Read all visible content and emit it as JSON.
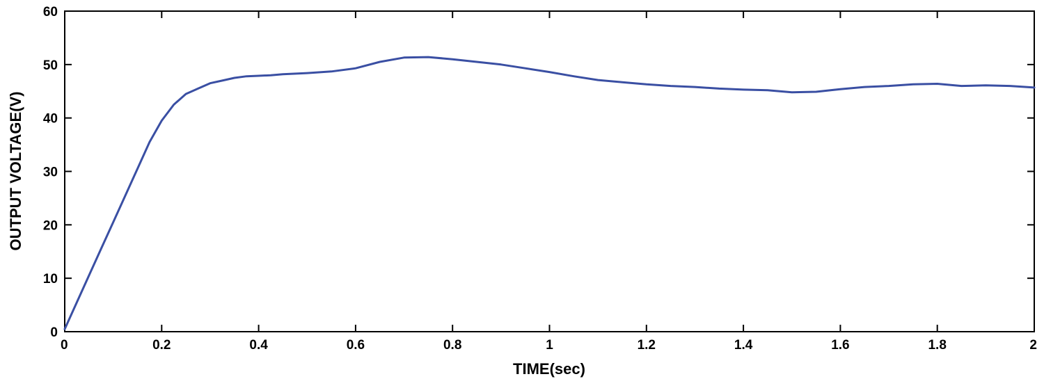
{
  "chart_data": {
    "type": "line",
    "title": "",
    "xlabel": "TIME(sec)",
    "ylabel": "OUTPUT VOLTAGE(V)",
    "xlim": [
      0,
      2
    ],
    "ylim": [
      0,
      60
    ],
    "x_ticks": [
      0,
      0.2,
      0.4,
      0.6,
      0.8,
      1,
      1.2,
      1.4,
      1.6,
      1.8,
      2
    ],
    "x_tick_labels": [
      "0",
      "0.2",
      "0.4",
      "0.6",
      "0.8",
      "1",
      "1.2",
      "1.4",
      "1.6",
      "1.8",
      "2"
    ],
    "y_ticks": [
      0,
      10,
      20,
      30,
      40,
      50,
      60
    ],
    "y_tick_labels": [
      "0",
      "10",
      "20",
      "30",
      "40",
      "50",
      "60"
    ],
    "grid": false,
    "legend": "none",
    "line_color": "#3a4fa3",
    "series": [
      {
        "x": [
          0,
          0.025,
          0.05,
          0.075,
          0.1,
          0.125,
          0.15,
          0.175,
          0.2,
          0.225,
          0.25,
          0.275,
          0.3,
          0.325,
          0.35,
          0.375,
          0.4,
          0.425,
          0.45,
          0.5,
          0.55,
          0.6,
          0.65,
          0.7,
          0.75,
          0.8,
          0.85,
          0.9,
          0.95,
          1.0,
          1.05,
          1.1,
          1.15,
          1.2,
          1.25,
          1.3,
          1.35,
          1.4,
          1.45,
          1.5,
          1.55,
          1.6,
          1.65,
          1.7,
          1.75,
          1.8,
          1.85,
          1.9,
          1.95,
          2.0
        ],
        "values": [
          0.5,
          5.5,
          10.5,
          15.5,
          20.5,
          25.5,
          30.5,
          35.5,
          39.5,
          42.5,
          44.5,
          45.5,
          46.5,
          47,
          47.5,
          47.8,
          47.9,
          48,
          48.2,
          48.4,
          48.7,
          49.3,
          50.5,
          51.3,
          51.4,
          51,
          50.5,
          50,
          49.3,
          48.6,
          47.8,
          47.1,
          46.7,
          46.3,
          46,
          45.8,
          45.5,
          45.3,
          45.2,
          44.8,
          44.9,
          45.4,
          45.8,
          46,
          46.3,
          46.4,
          46,
          46.1,
          46,
          45.7
        ]
      }
    ]
  }
}
